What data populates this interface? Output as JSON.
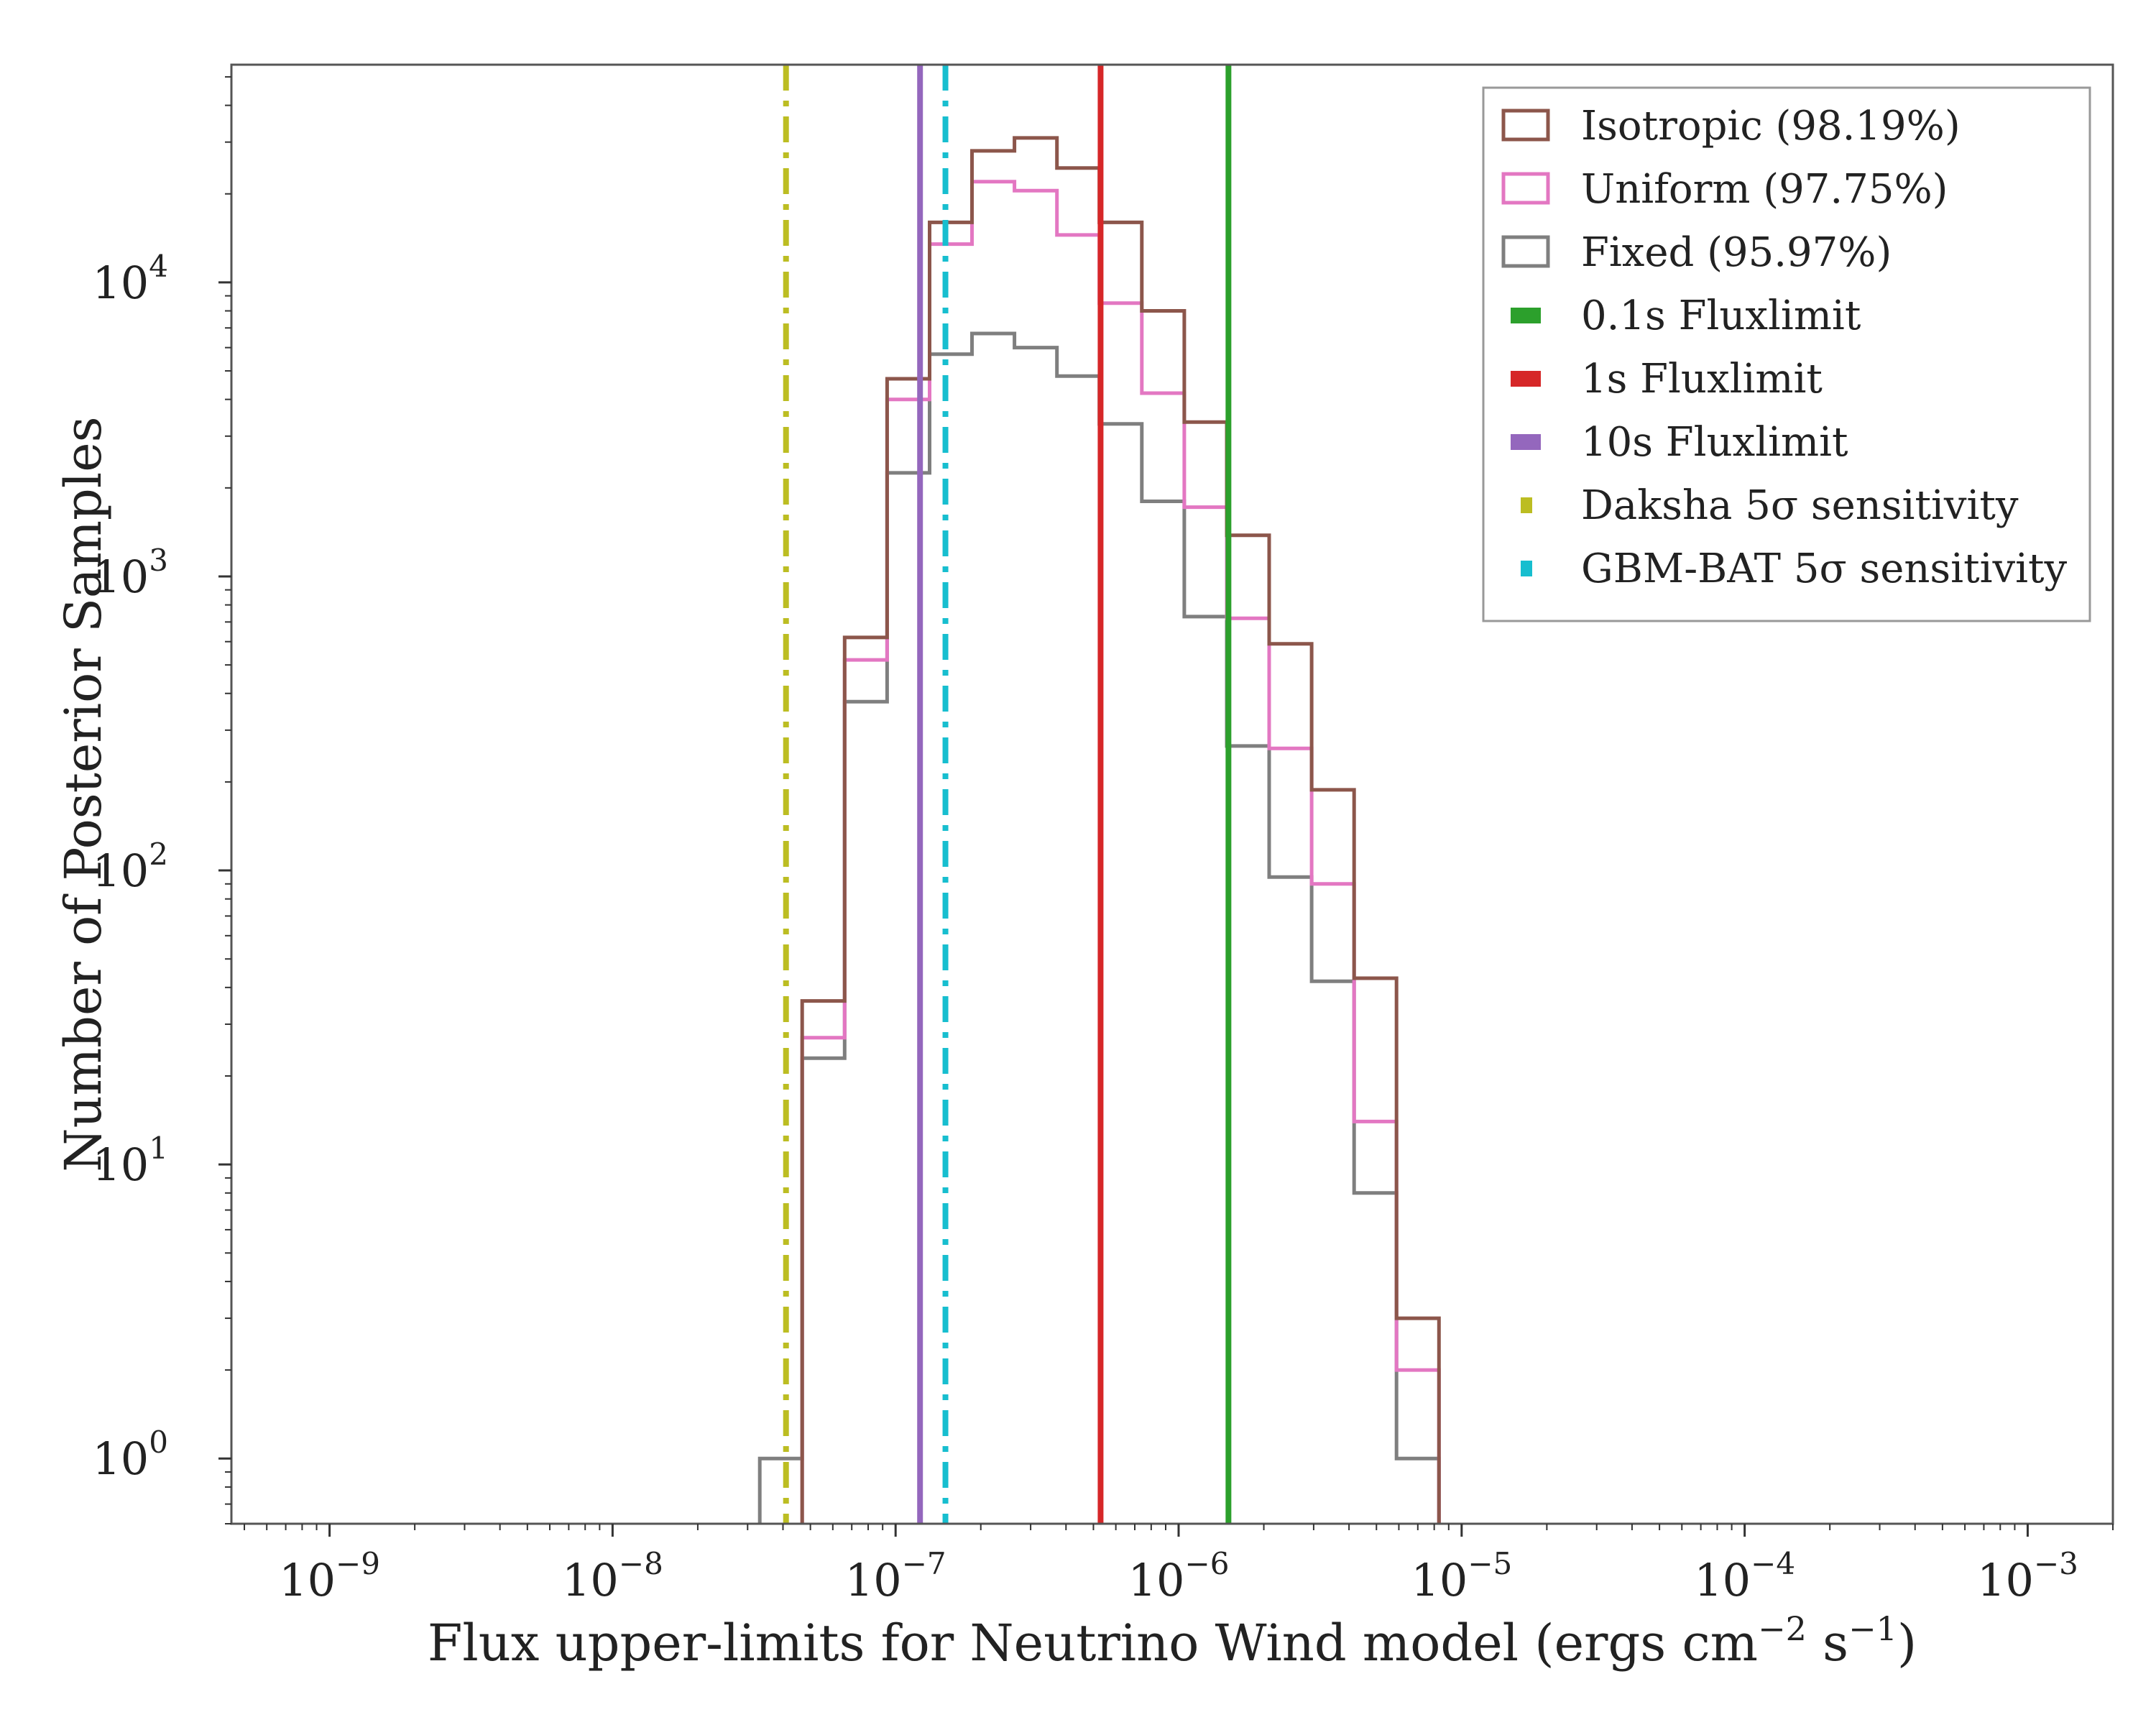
{
  "chart_data": {
    "type": "histogram",
    "xlabel": "Flux upper-limits for Neutrino Wind model (ergs cm",
    "xlabel_sup1": "−2",
    "xlabel_mid": " s",
    "xlabel_sup2": "−1",
    "xlabel_end": ")",
    "ylabel": "Number of Posterior Samples",
    "xscale": "log",
    "yscale": "log",
    "xlim": [
      4.5e-10,
      0.002
    ],
    "ylim": [
      0.6,
      55000
    ],
    "x_ticks": [
      {
        "base": "10",
        "exp": "−9",
        "value": 1e-09
      },
      {
        "base": "10",
        "exp": "−8",
        "value": 1e-08
      },
      {
        "base": "10",
        "exp": "−7",
        "value": 1e-07
      },
      {
        "base": "10",
        "exp": "−6",
        "value": 1e-06
      },
      {
        "base": "10",
        "exp": "−5",
        "value": 1e-05
      },
      {
        "base": "10",
        "exp": "−4",
        "value": 0.0001
      },
      {
        "base": "10",
        "exp": "−3",
        "value": 0.001
      }
    ],
    "y_ticks": [
      {
        "base": "10",
        "exp": "0",
        "value": 1
      },
      {
        "base": "10",
        "exp": "1",
        "value": 10
      },
      {
        "base": "10",
        "exp": "2",
        "value": 100
      },
      {
        "base": "10",
        "exp": "3",
        "value": 1000
      },
      {
        "base": "10",
        "exp": "4",
        "value": 10000
      }
    ],
    "bin_edges_log10": [
      -7.48,
      -7.33,
      -7.18,
      -7.03,
      -6.88,
      -6.73,
      -6.58,
      -6.43,
      -6.28,
      -6.13,
      -5.98,
      -5.83,
      -5.68,
      -5.53,
      -5.38,
      -5.23,
      -5.08,
      -4.93,
      -4.78,
      -4.63,
      -4.48,
      -4.33,
      -4.18,
      -4.03,
      -3.88,
      -3.73,
      -3.58,
      -3.43,
      -3.28,
      -3.13,
      -2.98
    ],
    "series": [
      {
        "name": "Isotropic (98.19%)",
        "color": "#8c564b",
        "counts": [
          0,
          36,
          620,
          4700,
          16000,
          28000,
          31000,
          24500,
          16000,
          8000,
          3350,
          1380,
          590,
          188,
          43,
          3,
          0,
          0,
          0,
          0,
          0,
          0,
          0,
          0,
          0,
          0,
          0,
          0,
          0,
          0
        ]
      },
      {
        "name": "Uniform (97.75%)",
        "color": "#e377c2",
        "counts": [
          0,
          27,
          520,
          4000,
          13500,
          22000,
          20500,
          14500,
          8500,
          4200,
          1720,
          720,
          260,
          90,
          14,
          2,
          0,
          0,
          0,
          0,
          0,
          0,
          0,
          0,
          0,
          0,
          0,
          0,
          0,
          0
        ]
      },
      {
        "name": "Fixed (95.97%)",
        "color": "#7f7f7f",
        "counts": [
          1,
          23,
          375,
          2250,
          5700,
          6700,
          6000,
          4800,
          3300,
          1800,
          730,
          265,
          95,
          42,
          8,
          1,
          0,
          0,
          0,
          0,
          0,
          0,
          0,
          0,
          0,
          0,
          0,
          0,
          0,
          0
        ]
      }
    ],
    "vlines": [
      {
        "name": "0.1s Fluxlimit",
        "value": 1.5e-06,
        "color": "#2ca02c",
        "style": "solid"
      },
      {
        "name": "1s Fluxlimit",
        "value": 5.3e-07,
        "color": "#d62728",
        "style": "solid"
      },
      {
        "name": "10s Fluxlimit",
        "value": 1.22e-07,
        "color": "#9467bd",
        "style": "solid"
      },
      {
        "name": "Daksha 5σ sensitivity",
        "value": 4.1e-08,
        "color": "#bcbd22",
        "style": "dashdot"
      },
      {
        "name": "GBM-BAT 5σ sensitivity",
        "value": 1.5e-07,
        "color": "#17becf",
        "style": "dashdot"
      }
    ],
    "legend_position": "top-right"
  }
}
